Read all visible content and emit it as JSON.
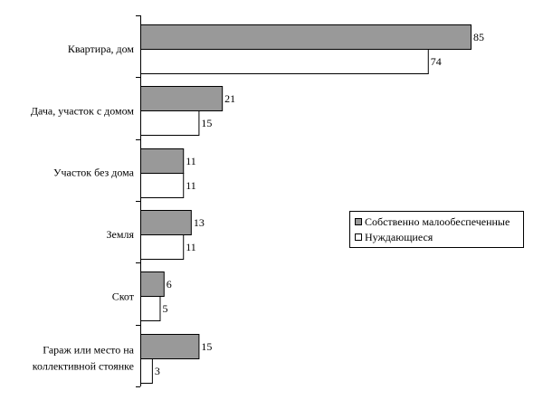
{
  "chart_data": {
    "type": "bar",
    "orientation": "horizontal",
    "categories": [
      [
        "Квартира, дом"
      ],
      [
        "Дача, участок с домом"
      ],
      [
        "Участок без дома"
      ],
      [
        "Земля"
      ],
      [
        "Скот"
      ],
      [
        "Гараж или место на",
        "коллективной стоянке"
      ]
    ],
    "series": [
      {
        "name": "Собственно малообеспеченные",
        "values": [
          85,
          21,
          11,
          13,
          6,
          15
        ],
        "color": "#999999"
      },
      {
        "name": "Нуждающиеся",
        "values": [
          74,
          15,
          11,
          11,
          5,
          3
        ],
        "color": "#ffffff"
      }
    ],
    "xlim": [
      0,
      85
    ],
    "grid": false,
    "legend_position": "right",
    "title": "",
    "xlabel": "",
    "ylabel": ""
  }
}
